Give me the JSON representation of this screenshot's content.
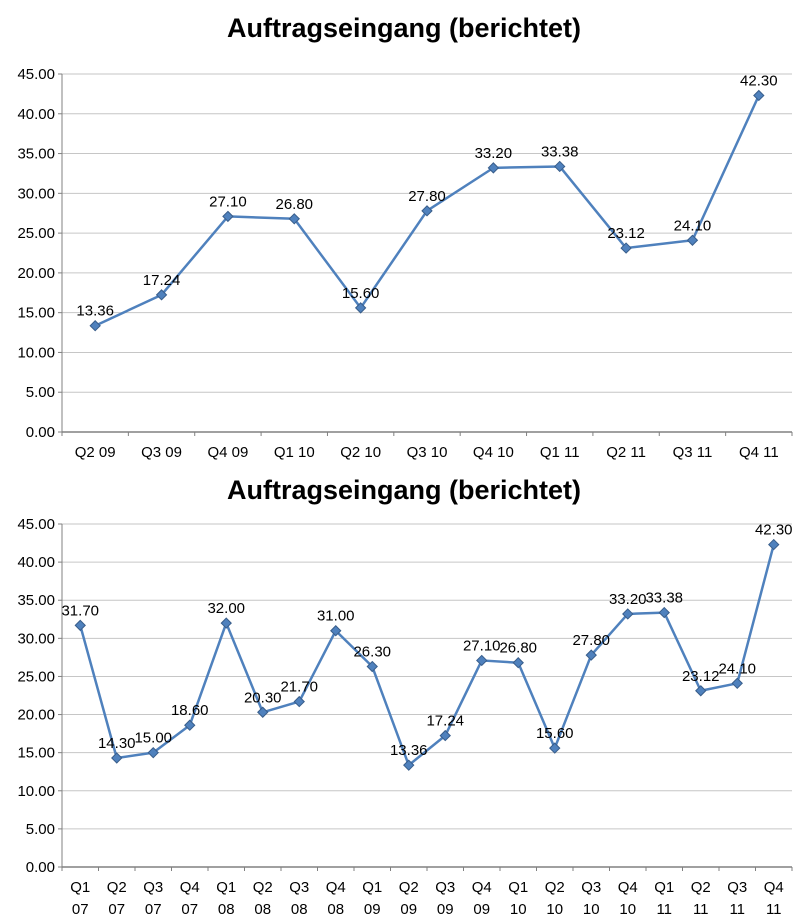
{
  "page": {
    "background": "#FFFFFF"
  },
  "chart_data": [
    {
      "type": "line",
      "title": "Auftragseingang (berichtet)",
      "categories": [
        "Q2 09",
        "Q3 09",
        "Q4 09",
        "Q1 10",
        "Q2 10",
        "Q3 10",
        "Q4 10",
        "Q1 11",
        "Q2 11",
        "Q3 11",
        "Q4 11"
      ],
      "values": [
        13.36,
        17.24,
        27.1,
        26.8,
        15.6,
        27.8,
        33.2,
        33.38,
        23.12,
        24.1,
        42.3
      ],
      "data_labels": true,
      "xlabel": "",
      "ylabel": "",
      "ylim": [
        0,
        45
      ],
      "ytick_step": 5,
      "ytick_labels": [
        "0.00",
        "5.00",
        "10.00",
        "15.00",
        "20.00",
        "25.00",
        "30.00",
        "35.00",
        "40.00",
        "45.00"
      ],
      "grid": true,
      "legend": "none",
      "line_color": "#4F81BD",
      "marker": "diamond",
      "marker_color": "#4F81BD",
      "marker_border": "#385D8A",
      "grid_color": "#C6C6C6",
      "axis_color": "#808080"
    },
    {
      "type": "line",
      "title": "Auftragseingang (berichtet)",
      "categories": [
        "Q1 07",
        "Q2 07",
        "Q3 07",
        "Q4 07",
        "Q1 08",
        "Q2 08",
        "Q3 08",
        "Q4 08",
        "Q1 09",
        "Q2 09",
        "Q3 09",
        "Q4 09",
        "Q1 10",
        "Q2 10",
        "Q3 10",
        "Q4 10",
        "Q1 11",
        "Q2 11",
        "Q3 11",
        "Q4 11"
      ],
      "values": [
        31.7,
        14.3,
        15.0,
        18.6,
        32.0,
        20.3,
        21.7,
        31.0,
        26.3,
        13.36,
        17.24,
        27.1,
        26.8,
        15.6,
        27.8,
        33.2,
        33.38,
        23.12,
        24.1,
        42.3
      ],
      "data_labels": true,
      "xlabel": "",
      "ylabel": "",
      "ylim": [
        0,
        45
      ],
      "ytick_step": 5,
      "ytick_labels": [
        "0.00",
        "5.00",
        "10.00",
        "15.00",
        "20.00",
        "25.00",
        "30.00",
        "35.00",
        "40.00",
        "45.00"
      ],
      "grid": true,
      "legend": "none",
      "line_color": "#4F81BD",
      "marker": "diamond",
      "marker_color": "#4F81BD",
      "marker_border": "#385D8A",
      "grid_color": "#C6C6C6",
      "axis_color": "#808080"
    }
  ]
}
